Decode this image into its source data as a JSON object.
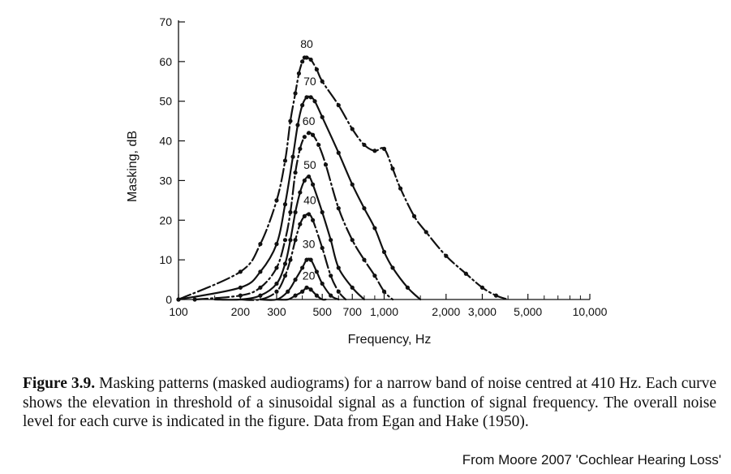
{
  "chart_data": {
    "type": "line",
    "xlabel": "Frequency, Hz",
    "ylabel": "Masking, dB",
    "xscale": "log",
    "xlim": [
      100,
      10000
    ],
    "ylim": [
      0,
      70
    ],
    "x_ticks": [
      {
        "value": 100,
        "label": "100"
      },
      {
        "value": 200,
        "label": "200"
      },
      {
        "value": 300,
        "label": "300"
      },
      {
        "value": 500,
        "label": "500"
      },
      {
        "value": 700,
        "label": "700"
      },
      {
        "value": 1000,
        "label": "1,000"
      },
      {
        "value": 2000,
        "label": "2,000"
      },
      {
        "value": 3000,
        "label": "3,000"
      },
      {
        "value": 5000,
        "label": "5,000"
      },
      {
        "value": 10000,
        "label": "10,000"
      }
    ],
    "x_minor_ticks": [
      150,
      250,
      400,
      600,
      800,
      900,
      1500,
      4000,
      6000,
      7000,
      8000,
      9000
    ],
    "y_ticks": [
      0,
      10,
      20,
      30,
      40,
      50,
      60,
      70
    ],
    "grid": false,
    "series": [
      {
        "name": "80",
        "label_at": [
          420,
          63.5
        ],
        "points": [
          [
            100,
            0
          ],
          [
            200,
            7
          ],
          [
            250,
            14
          ],
          [
            300,
            25
          ],
          [
            330,
            35
          ],
          [
            350,
            45
          ],
          [
            370,
            52
          ],
          [
            385,
            57
          ],
          [
            400,
            60
          ],
          [
            410,
            61
          ],
          [
            420,
            61
          ],
          [
            440,
            60.5
          ],
          [
            470,
            58
          ],
          [
            500,
            55
          ],
          [
            600,
            49
          ],
          [
            700,
            43
          ],
          [
            800,
            39
          ],
          [
            900,
            37.5
          ],
          [
            1000,
            38
          ],
          [
            1100,
            33
          ],
          [
            1200,
            28
          ],
          [
            1400,
            21
          ],
          [
            1600,
            17
          ],
          [
            2000,
            11
          ],
          [
            2500,
            6.5
          ],
          [
            3000,
            3
          ],
          [
            3500,
            1
          ],
          [
            4000,
            0
          ]
        ]
      },
      {
        "name": "70",
        "label_at": [
          435,
          54
        ],
        "points": [
          [
            100,
            0
          ],
          [
            200,
            3
          ],
          [
            250,
            7
          ],
          [
            300,
            14
          ],
          [
            330,
            24
          ],
          [
            360,
            36
          ],
          [
            380,
            44
          ],
          [
            400,
            49
          ],
          [
            420,
            51
          ],
          [
            440,
            51
          ],
          [
            460,
            50
          ],
          [
            500,
            46
          ],
          [
            600,
            37
          ],
          [
            700,
            29
          ],
          [
            800,
            23
          ],
          [
            900,
            18
          ],
          [
            1000,
            12
          ],
          [
            1100,
            8
          ],
          [
            1300,
            3
          ],
          [
            1500,
            0
          ]
        ]
      },
      {
        "name": "60",
        "label_at": [
          430,
          44
        ],
        "points": [
          [
            120,
            0
          ],
          [
            200,
            1
          ],
          [
            250,
            3
          ],
          [
            300,
            8
          ],
          [
            330,
            15
          ],
          [
            350,
            22
          ],
          [
            370,
            32
          ],
          [
            390,
            38
          ],
          [
            410,
            41
          ],
          [
            430,
            42
          ],
          [
            450,
            41.5
          ],
          [
            480,
            39
          ],
          [
            520,
            34
          ],
          [
            600,
            23
          ],
          [
            700,
            15
          ],
          [
            800,
            10
          ],
          [
            900,
            6
          ],
          [
            1000,
            2
          ],
          [
            1100,
            0
          ]
        ]
      },
      {
        "name": "50",
        "label_at": [
          435,
          33
        ],
        "points": [
          [
            150,
            0
          ],
          [
            200,
            0
          ],
          [
            250,
            1
          ],
          [
            300,
            4
          ],
          [
            330,
            9
          ],
          [
            350,
            15
          ],
          [
            370,
            22
          ],
          [
            390,
            27
          ],
          [
            410,
            30
          ],
          [
            430,
            31
          ],
          [
            450,
            29
          ],
          [
            500,
            22
          ],
          [
            550,
            15
          ],
          [
            600,
            8
          ],
          [
            700,
            3
          ],
          [
            800,
            0
          ]
        ]
      },
      {
        "name": "40",
        "label_at": [
          435,
          24
        ],
        "points": [
          [
            200,
            0
          ],
          [
            250,
            0
          ],
          [
            300,
            2
          ],
          [
            330,
            6
          ],
          [
            350,
            10
          ],
          [
            370,
            15
          ],
          [
            390,
            19
          ],
          [
            410,
            21
          ],
          [
            430,
            21.5
          ],
          [
            450,
            20
          ],
          [
            500,
            13
          ],
          [
            550,
            6
          ],
          [
            600,
            2
          ],
          [
            650,
            0
          ]
        ]
      },
      {
        "name": "30",
        "label_at": [
          430,
          13
        ],
        "points": [
          [
            250,
            0
          ],
          [
            300,
            0
          ],
          [
            340,
            2
          ],
          [
            370,
            5
          ],
          [
            400,
            8
          ],
          [
            420,
            10
          ],
          [
            440,
            10
          ],
          [
            470,
            7
          ],
          [
            500,
            4
          ],
          [
            550,
            1
          ],
          [
            600,
            0
          ]
        ]
      },
      {
        "name": "20",
        "label_at": [
          430,
          5
        ],
        "points": [
          [
            300,
            0
          ],
          [
            340,
            0
          ],
          [
            370,
            1
          ],
          [
            400,
            2
          ],
          [
            420,
            3
          ],
          [
            440,
            2.5
          ],
          [
            470,
            1
          ],
          [
            500,
            0
          ],
          [
            520,
            0
          ]
        ]
      }
    ]
  },
  "caption": {
    "label": "Figure 3.9.",
    "text": "Masking patterns (masked audiograms) for a narrow band of noise centred at 410 Hz. Each curve shows the elevation in threshold of a sinusoidal signal as a function of signal frequency. The overall noise level for each curve is indicated in the figure. Data from Egan and Hake (1950)."
  },
  "source": "From Moore 2007 'Cochlear Hearing Loss'"
}
